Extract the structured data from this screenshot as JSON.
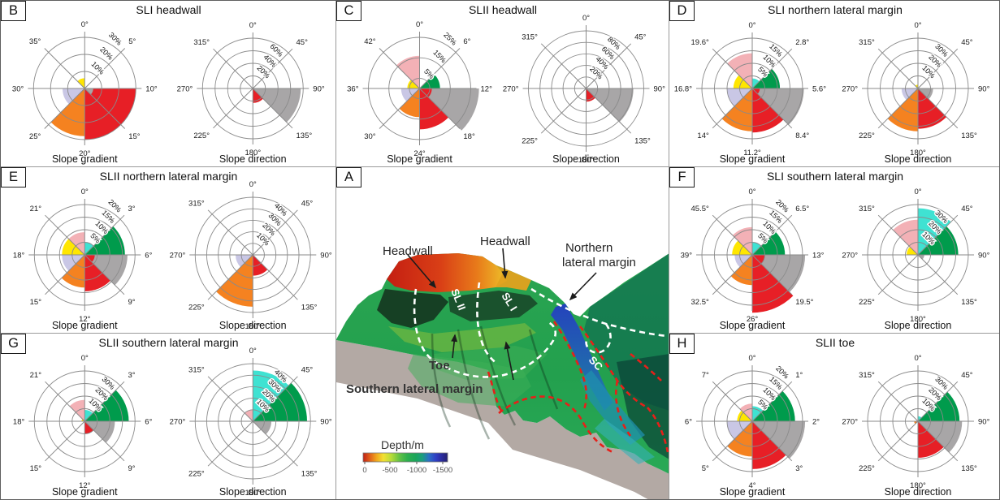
{
  "colors": {
    "red": "#e71f26",
    "orange": "#f58220",
    "yellow": "#ffe600",
    "lavender": "#c9c7e5",
    "pink": "#f3b1b6",
    "green": "#009b4c",
    "cyan": "#3fe2d2",
    "gray": "#a8a6a7",
    "grid": "#8a8a8a"
  },
  "chart_data": [
    {
      "panel": "B",
      "title": "SLI headwall",
      "type": "rose",
      "roses": [
        {
          "axis_label": "Slope gradient",
          "sector_labels": [
            "0°",
            "5°",
            "10°",
            "15°",
            "20°",
            "25°",
            "30°",
            "35°"
          ],
          "rings": [
            10,
            20,
            30
          ],
          "ring_labels": [
            "10%",
            "20%",
            "30%"
          ],
          "wedges": [
            {
              "color": "red",
              "start": 90,
              "end": 180,
              "value": 30
            },
            {
              "color": "gray",
              "start": 90,
              "end": 135,
              "value": 5
            },
            {
              "color": "orange",
              "start": 180,
              "end": 225,
              "value": 28
            },
            {
              "color": "lavender",
              "start": 225,
              "end": 270,
              "value": 13
            },
            {
              "color": "yellow",
              "start": 315,
              "end": 360,
              "value": 6
            }
          ]
        },
        {
          "axis_label": "Slope direction",
          "sector_labels": [
            "0°",
            "45°",
            "90°",
            "135°",
            "180°",
            "225°",
            "270°",
            "315°"
          ],
          "rings": [
            20,
            40,
            60,
            80
          ],
          "ring_labels": [
            "20%",
            "40%",
            "60%"
          ],
          "wedges": [
            {
              "color": "gray",
              "start": 90,
              "end": 135,
              "value": 76
            },
            {
              "color": "red",
              "start": 135,
              "end": 180,
              "value": 23
            }
          ]
        }
      ]
    },
    {
      "panel": "C",
      "title": "SLII headwall",
      "type": "rose",
      "roses": [
        {
          "axis_label": "Slope gradient",
          "sector_labels": [
            "0°",
            "6°",
            "12°",
            "18°",
            "24°",
            "30°",
            "36°",
            "42°"
          ],
          "rings": [
            5,
            15,
            25
          ],
          "ring_labels": [
            "5%",
            "15%",
            "25%"
          ],
          "wedges": [
            {
              "color": "gray",
              "start": 90,
              "end": 135,
              "value": 29
            },
            {
              "color": "red",
              "start": 135,
              "end": 180,
              "value": 20
            },
            {
              "color": "red",
              "start": 90,
              "end": 135,
              "value": 6
            },
            {
              "color": "orange",
              "start": 180,
              "end": 225,
              "value": 14
            },
            {
              "color": "lavender",
              "start": 225,
              "end": 270,
              "value": 9
            },
            {
              "color": "yellow",
              "start": 270,
              "end": 315,
              "value": 6
            },
            {
              "color": "pink",
              "start": 315,
              "end": 360,
              "value": 16
            },
            {
              "color": "green",
              "start": 45,
              "end": 90,
              "value": 10
            }
          ]
        },
        {
          "axis_label": "Slope direction",
          "sector_labels": [
            "0°",
            "45°",
            "90°",
            "135°",
            "180°",
            "225°",
            "270°",
            "315°"
          ],
          "rings": [
            20,
            40,
            60,
            80,
            100
          ],
          "ring_labels": [
            "20%",
            "40%",
            "60%",
            "80%"
          ],
          "wedges": [
            {
              "color": "gray",
              "start": 90,
              "end": 135,
              "value": 82
            },
            {
              "color": "red",
              "start": 135,
              "end": 180,
              "value": 23
            }
          ]
        }
      ]
    },
    {
      "panel": "D",
      "title": "SLI northern lateral margin",
      "type": "rose",
      "roses": [
        {
          "axis_label": "Slope gradient",
          "sector_labels": [
            "0°",
            "2.8°",
            "5.6°",
            "8.4°",
            "11.2°",
            "14°",
            "16.8°",
            "19.6°"
          ],
          "rings": [
            5,
            10,
            15,
            20
          ],
          "ring_labels": [
            "5%",
            "10%",
            "15%"
          ],
          "wedges": [
            {
              "color": "gray",
              "start": 90,
              "end": 135,
              "value": 20.5
            },
            {
              "color": "red",
              "start": 135,
              "end": 180,
              "value": 17.5
            },
            {
              "color": "red",
              "start": 90,
              "end": 135,
              "value": 3
            },
            {
              "color": "orange",
              "start": 180,
              "end": 225,
              "value": 17
            },
            {
              "color": "lavender",
              "start": 225,
              "end": 270,
              "value": 10
            },
            {
              "color": "yellow",
              "start": 270,
              "end": 315,
              "value": 7.5
            },
            {
              "color": "pink",
              "start": 315,
              "end": 360,
              "value": 14
            },
            {
              "color": "cyan",
              "start": 0,
              "end": 45,
              "value": 4
            },
            {
              "color": "green",
              "start": 45,
              "end": 90,
              "value": 11
            }
          ]
        },
        {
          "axis_label": "Slope direction",
          "sector_labels": [
            "0°",
            "45°",
            "90°",
            "135°",
            "180°",
            "225°",
            "270°",
            "315°"
          ],
          "rings": [
            10,
            20,
            30,
            40
          ],
          "ring_labels": [
            "10%",
            "20%",
            "30%"
          ],
          "wedges": [
            {
              "color": "gray",
              "start": 90,
              "end": 135,
              "value": 12
            },
            {
              "color": "red",
              "start": 135,
              "end": 180,
              "value": 32
            },
            {
              "color": "orange",
              "start": 180,
              "end": 225,
              "value": 34
            },
            {
              "color": "lavender",
              "start": 225,
              "end": 270,
              "value": 13
            },
            {
              "color": "yellow",
              "start": 315,
              "end": 360,
              "value": 3
            }
          ]
        }
      ]
    },
    {
      "panel": "E",
      "title": "SLII northern lateral margin",
      "type": "rose",
      "roses": [
        {
          "axis_label": "Slope gradient",
          "sector_labels": [
            "0°",
            "3°",
            "6°",
            "9°",
            "12°",
            "15°",
            "18°",
            "21°"
          ],
          "rings": [
            5,
            10,
            15,
            20
          ],
          "ring_labels": [
            "5%",
            "10%",
            "15%",
            "20%"
          ],
          "wedges": [
            {
              "color": "gray",
              "start": 90,
              "end": 135,
              "value": 17
            },
            {
              "color": "red",
              "start": 135,
              "end": 180,
              "value": 14.5
            },
            {
              "color": "red",
              "start": 90,
              "end": 135,
              "value": 4
            },
            {
              "color": "orange",
              "start": 180,
              "end": 225,
              "value": 13
            },
            {
              "color": "lavender",
              "start": 225,
              "end": 270,
              "value": 9
            },
            {
              "color": "yellow",
              "start": 270,
              "end": 315,
              "value": 9
            },
            {
              "color": "pink",
              "start": 315,
              "end": 360,
              "value": 9
            },
            {
              "color": "cyan",
              "start": 0,
              "end": 45,
              "value": 5
            },
            {
              "color": "green",
              "start": 45,
              "end": 90,
              "value": 16
            }
          ]
        },
        {
          "axis_label": "Slope direction",
          "sector_labels": [
            "0°",
            "45°",
            "90°",
            "135°",
            "180°",
            "225°",
            "270°",
            "315°"
          ],
          "rings": [
            10,
            20,
            30,
            40,
            50
          ],
          "ring_labels": [
            "10%",
            "20%",
            "30%",
            "40%"
          ],
          "wedges": [
            {
              "color": "orange",
              "start": 180,
              "end": 225,
              "value": 45
            },
            {
              "color": "red",
              "start": 135,
              "end": 180,
              "value": 18
            },
            {
              "color": "lavender",
              "start": 225,
              "end": 270,
              "value": 15
            }
          ]
        }
      ]
    },
    {
      "panel": "F",
      "title": "SLI southern lateral margin",
      "type": "rose",
      "roses": [
        {
          "axis_label": "Slope gradient",
          "sector_labels": [
            "0°",
            "6.5°",
            "13°",
            "19.5°",
            "26°",
            "32.5°",
            "39°",
            "45.5°"
          ],
          "rings": [
            5,
            10,
            15,
            20
          ],
          "ring_labels": [
            "5%",
            "10%",
            "15%",
            "20%"
          ],
          "wedges": [
            {
              "color": "gray",
              "start": 90,
              "end": 135,
              "value": 21
            },
            {
              "color": "red",
              "start": 135,
              "end": 180,
              "value": 23
            },
            {
              "color": "red",
              "start": 90,
              "end": 135,
              "value": 5
            },
            {
              "color": "orange",
              "start": 180,
              "end": 225,
              "value": 12
            },
            {
              "color": "lavender",
              "start": 225,
              "end": 270,
              "value": 7
            },
            {
              "color": "yellow",
              "start": 270,
              "end": 315,
              "value": 8
            },
            {
              "color": "pink",
              "start": 315,
              "end": 360,
              "value": 11
            },
            {
              "color": "cyan",
              "start": 0,
              "end": 45,
              "value": 5
            },
            {
              "color": "green",
              "start": 45,
              "end": 90,
              "value": 13
            }
          ]
        },
        {
          "axis_label": "Slope direction",
          "sector_labels": [
            "0°",
            "45°",
            "90°",
            "135°",
            "180°",
            "225°",
            "270°",
            "315°"
          ],
          "rings": [
            10,
            20,
            30,
            40
          ],
          "ring_labels": [
            "10%",
            "20%",
            "30%"
          ],
          "wedges": [
            {
              "color": "cyan",
              "start": 0,
              "end": 45,
              "value": 37
            },
            {
              "color": "green",
              "start": 45,
              "end": 90,
              "value": 32
            },
            {
              "color": "pink",
              "start": 315,
              "end": 360,
              "value": 28
            },
            {
              "color": "yellow",
              "start": 270,
              "end": 315,
              "value": 9
            },
            {
              "color": "gray",
              "start": 90,
              "end": 135,
              "value": 5
            }
          ]
        }
      ]
    },
    {
      "panel": "G",
      "title": "SLII southern lateral margin",
      "type": "rose",
      "roses": [
        {
          "axis_label": "Slope gradient",
          "sector_labels": [
            "0°",
            "3°",
            "6°",
            "9°",
            "12°",
            "15°",
            "18°",
            "21°"
          ],
          "rings": [
            10,
            20,
            30,
            40
          ],
          "ring_labels": [
            "10%",
            "20%",
            "30%"
          ],
          "wedges": [
            {
              "color": "gray",
              "start": 90,
              "end": 135,
              "value": 24
            },
            {
              "color": "red",
              "start": 135,
              "end": 180,
              "value": 10
            },
            {
              "color": "green",
              "start": 45,
              "end": 90,
              "value": 35
            },
            {
              "color": "cyan",
              "start": 0,
              "end": 45,
              "value": 9
            },
            {
              "color": "pink",
              "start": 315,
              "end": 360,
              "value": 17
            },
            {
              "color": "yellow",
              "start": 270,
              "end": 315,
              "value": 2.5
            }
          ]
        },
        {
          "axis_label": "Slope direction",
          "sector_labels": [
            "0°",
            "45°",
            "90°",
            "135°",
            "180°",
            "225°",
            "270°",
            "315°"
          ],
          "rings": [
            10,
            20,
            30,
            40,
            50
          ],
          "ring_labels": [
            "10%",
            "20%",
            "30%",
            "40%"
          ],
          "wedges": [
            {
              "color": "green",
              "start": 45,
              "end": 90,
              "value": 47
            },
            {
              "color": "cyan",
              "start": 0,
              "end": 45,
              "value": 44
            },
            {
              "color": "pink",
              "start": 315,
              "end": 360,
              "value": 10
            },
            {
              "color": "gray",
              "start": 90,
              "end": 135,
              "value": 16
            }
          ]
        }
      ]
    },
    {
      "panel": "H",
      "title": "SLII toe",
      "type": "rose",
      "roses": [
        {
          "axis_label": "Slope gradient",
          "sector_labels": [
            "0°",
            "1°",
            "2°",
            "3°",
            "4°",
            "5°",
            "6°",
            "7°"
          ],
          "rings": [
            5,
            10,
            15,
            20
          ],
          "ring_labels": [
            "5%",
            "10%",
            "15%",
            "20%"
          ],
          "wedges": [
            {
              "color": "gray",
              "start": 90,
              "end": 135,
              "value": 21
            },
            {
              "color": "red",
              "start": 135,
              "end": 180,
              "value": 19
            },
            {
              "color": "orange",
              "start": 180,
              "end": 225,
              "value": 14
            },
            {
              "color": "lavender",
              "start": 225,
              "end": 270,
              "value": 10
            },
            {
              "color": "yellow",
              "start": 270,
              "end": 315,
              "value": 6
            },
            {
              "color": "pink",
              "start": 315,
              "end": 360,
              "value": 7
            },
            {
              "color": "cyan",
              "start": 0,
              "end": 45,
              "value": 6
            },
            {
              "color": "green",
              "start": 45,
              "end": 90,
              "value": 17
            }
          ]
        },
        {
          "axis_label": "Slope direction",
          "sector_labels": [
            "0°",
            "45°",
            "90°",
            "135°",
            "180°",
            "225°",
            "270°",
            "315°"
          ],
          "rings": [
            10,
            20,
            30,
            40
          ],
          "ring_labels": [
            "10%",
            "20%",
            "30%"
          ],
          "wedges": [
            {
              "color": "gray",
              "start": 90,
              "end": 135,
              "value": 35
            },
            {
              "color": "green",
              "start": 45,
              "end": 90,
              "value": 33
            },
            {
              "color": "red",
              "start": 135,
              "end": 180,
              "value": 29
            },
            {
              "color": "cyan",
              "start": 0,
              "end": 45,
              "value": 4
            },
            {
              "color": "orange",
              "start": 225,
              "end": 270,
              "value": 3
            }
          ]
        }
      ]
    }
  ],
  "map": {
    "panel": "A",
    "labels": {
      "headwall_left": "Headwall",
      "headwall_center": "Headwall",
      "northern_line1": "Northern",
      "northern_line2": "lateral margin",
      "southern": "Southern lateral margin",
      "toe": "Toe",
      "channel": "SC",
      "slide1": "SL I",
      "slide2": "SL II"
    },
    "colorbar": {
      "title": "Depth/m",
      "ticks": [
        "0",
        "-500",
        "-1000",
        "-1500"
      ]
    }
  }
}
